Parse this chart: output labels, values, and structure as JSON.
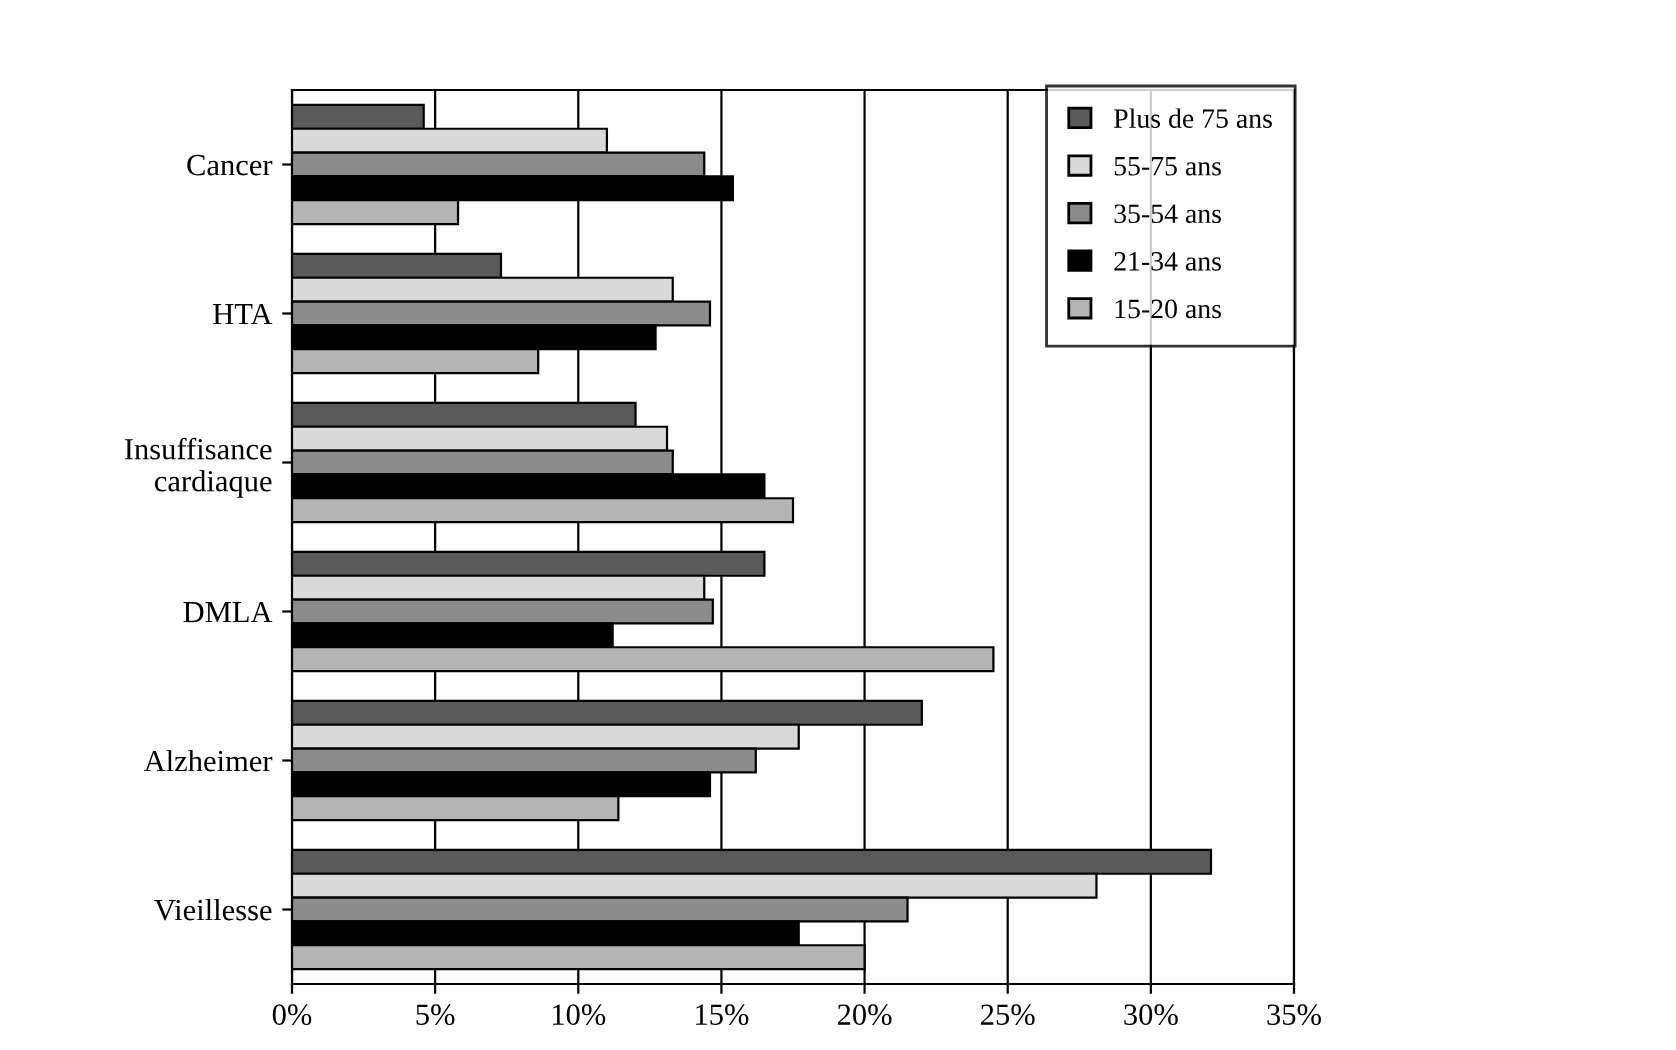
{
  "chart_data": {
    "type": "bar",
    "orientation": "horizontal",
    "categories": [
      "Cancer",
      "HTA",
      "Insuffisance\ncardiaque",
      "DMLA",
      "Alzheimer",
      "Vieillesse"
    ],
    "series": [
      {
        "name": "Plus de 75 ans",
        "color": "#5a5a5a",
        "values": [
          4.6,
          7.3,
          12.0,
          16.5,
          22.0,
          32.1
        ]
      },
      {
        "name": "55-75 ans",
        "color": "#d9d9d9",
        "values": [
          11.0,
          13.3,
          13.1,
          14.4,
          17.7,
          28.1
        ]
      },
      {
        "name": "35-54 ans",
        "color": "#8c8c8c",
        "values": [
          14.4,
          14.6,
          13.3,
          14.7,
          16.2,
          21.5
        ]
      },
      {
        "name": "21-34 ans",
        "color": "#000000",
        "values": [
          15.4,
          12.7,
          16.5,
          11.2,
          14.6,
          17.7
        ]
      },
      {
        "name": "15-20 ans",
        "color": "#b4b4b4",
        "values": [
          5.8,
          8.6,
          17.5,
          24.5,
          11.4,
          20.0
        ]
      }
    ],
    "xlim": [
      0,
      35
    ],
    "xticks": [
      {
        "value": 0,
        "label": "0%"
      },
      {
        "value": 5,
        "label": "5%"
      },
      {
        "value": 10,
        "label": "10%"
      },
      {
        "value": 15,
        "label": "15%"
      },
      {
        "value": 20,
        "label": "20%"
      },
      {
        "value": 25,
        "label": "25%"
      },
      {
        "value": 30,
        "label": "30%"
      },
      {
        "value": 35,
        "label": "35%"
      }
    ],
    "grid": "x",
    "legend": "top right"
  }
}
